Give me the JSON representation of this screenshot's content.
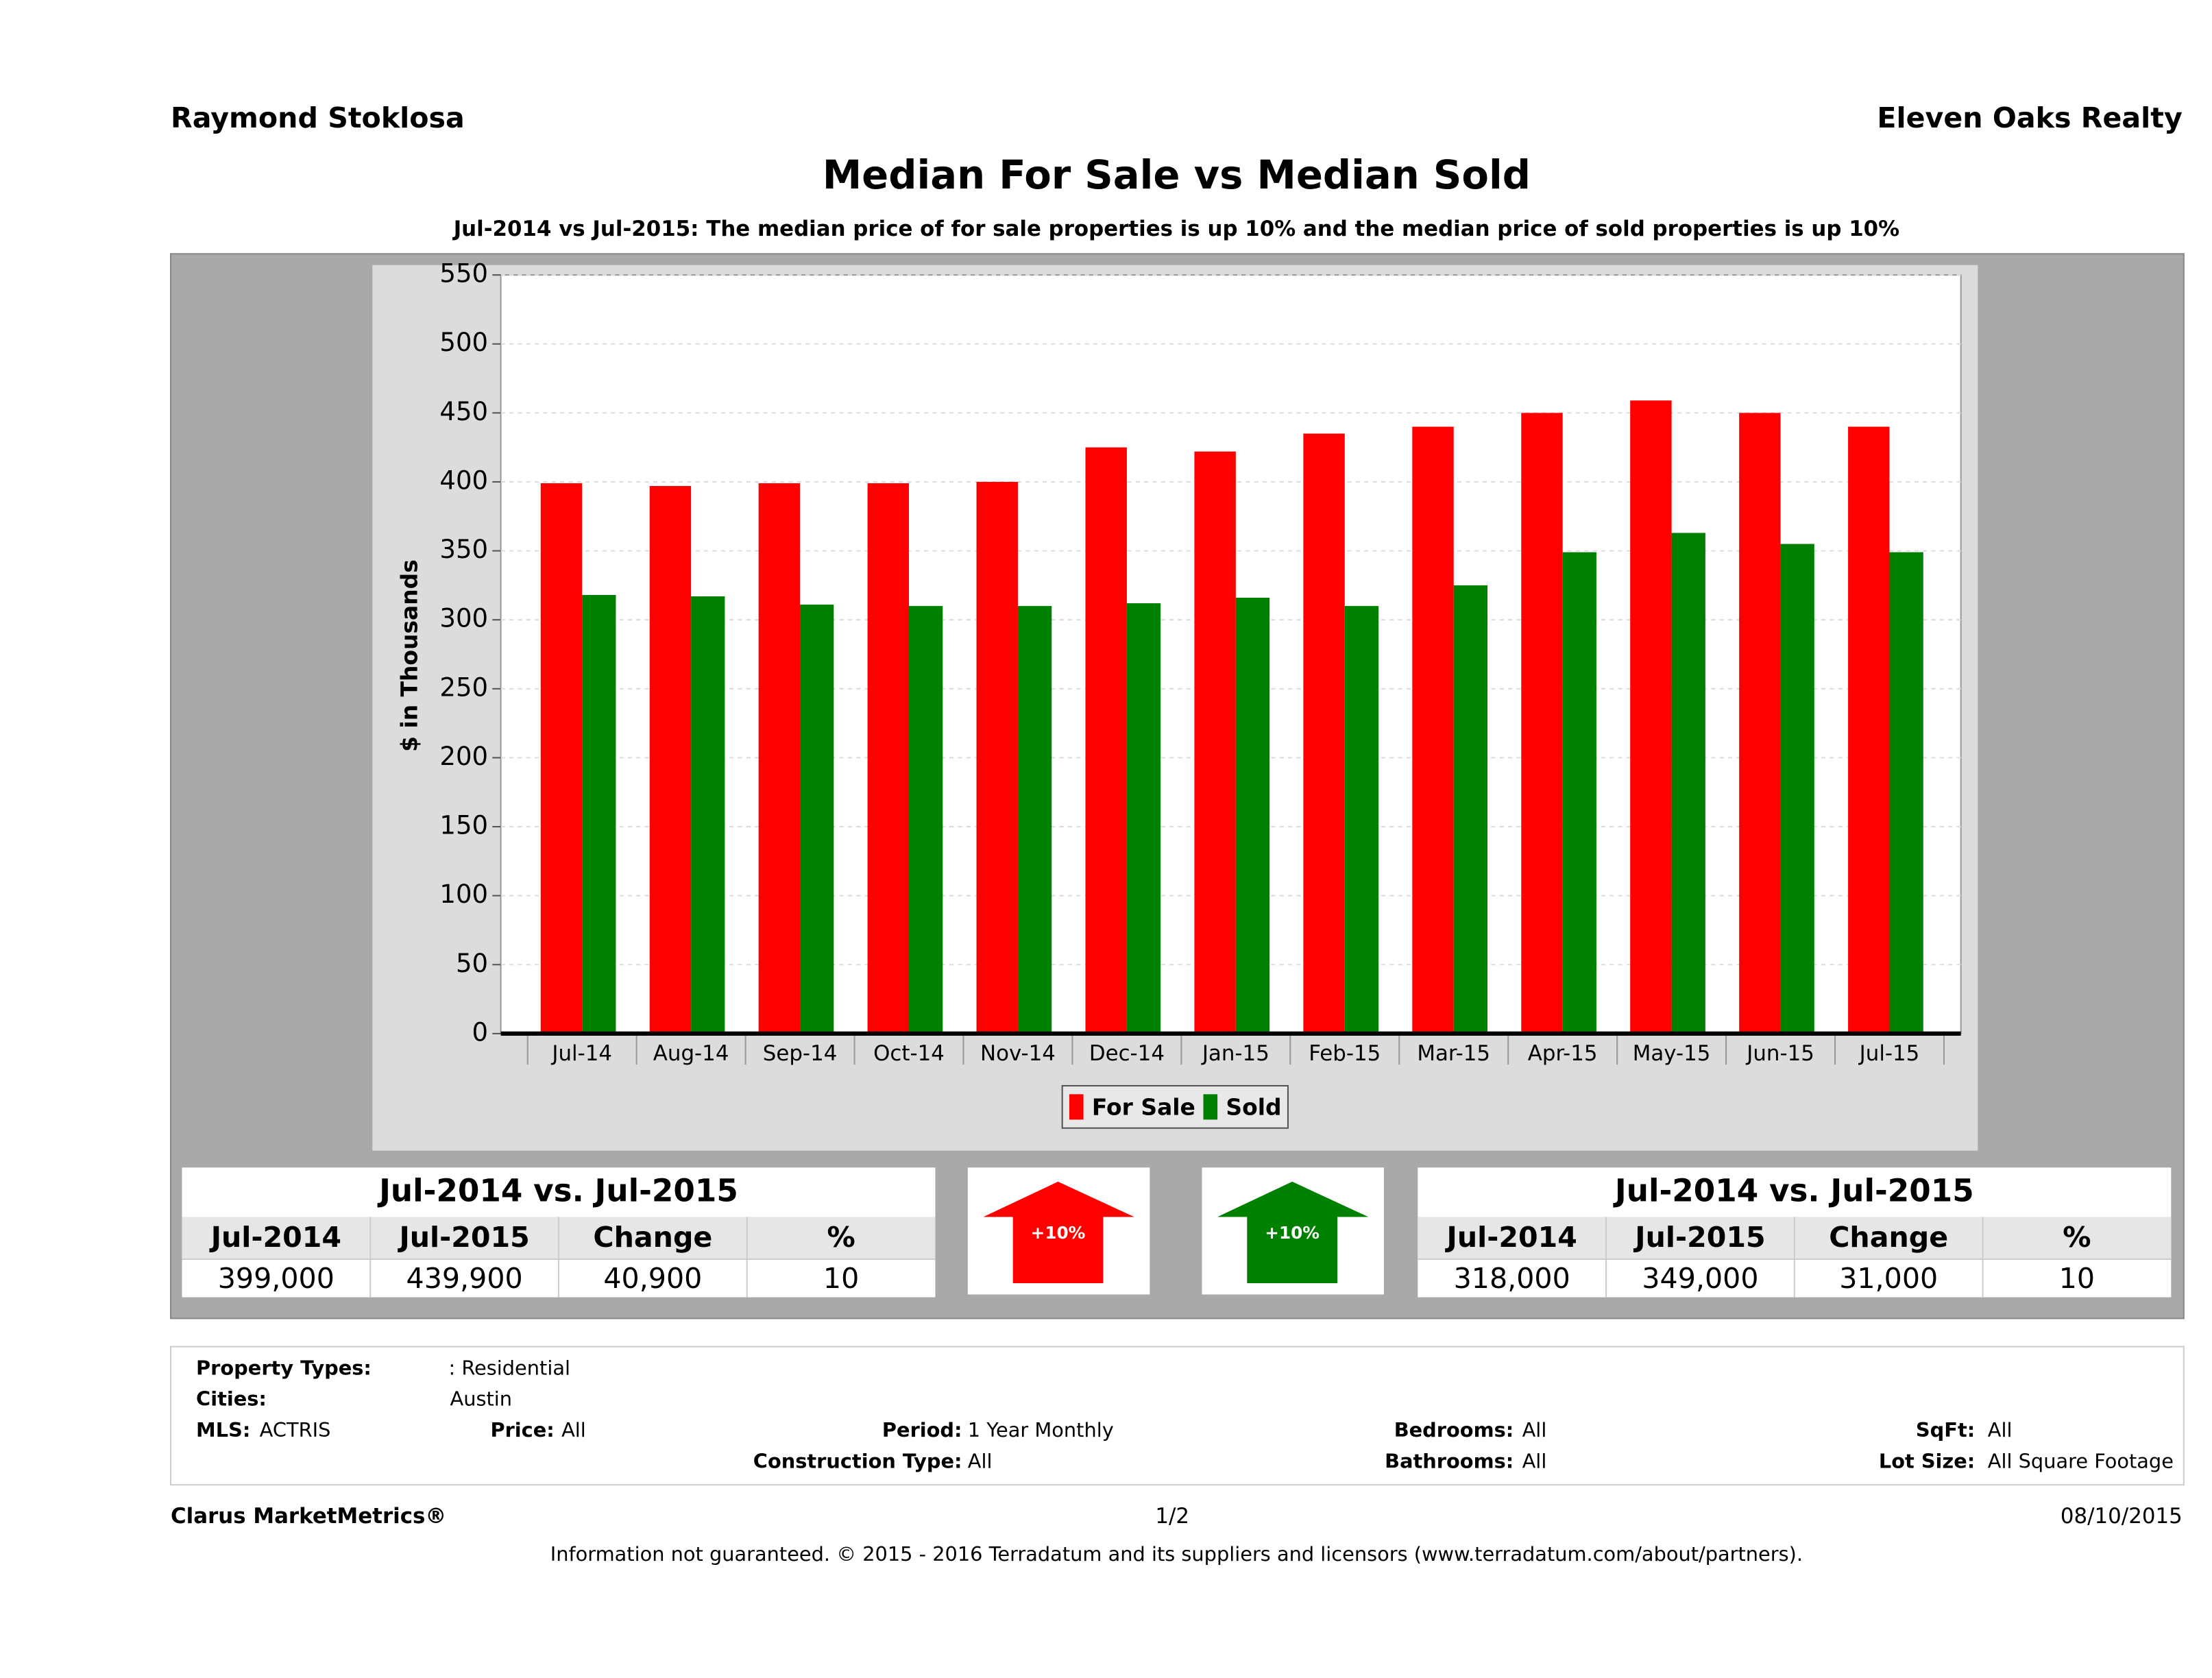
{
  "header": {
    "left": "Raymond Stoklosa",
    "right": "Eleven Oaks Realty"
  },
  "chart_data": {
    "type": "bar",
    "title": "Median For Sale vs Median Sold",
    "subtitle": "Jul-2014 vs Jul-2015: The median price of for sale properties is up 10% and the median price of sold properties is up 10%",
    "y_label": "$ in Thousands",
    "categories": [
      "Jul-14",
      "Aug-14",
      "Sep-14",
      "Oct-14",
      "Nov-14",
      "Dec-14",
      "Jan-15",
      "Feb-15",
      "Mar-15",
      "Apr-15",
      "May-15",
      "Jun-15",
      "Jul-15"
    ],
    "series": [
      {
        "name": "For Sale",
        "color": "#ff0000",
        "values": [
          399,
          397,
          399,
          399,
          400,
          425,
          422,
          435,
          440,
          450,
          459,
          450,
          440
        ]
      },
      {
        "name": "Sold",
        "color": "#008000",
        "values": [
          318,
          317,
          311,
          310,
          310,
          312,
          316,
          310,
          325,
          349,
          363,
          355,
          349
        ]
      }
    ],
    "ylim": [
      0,
      550
    ],
    "yticks": [
      0,
      50,
      100,
      150,
      200,
      250,
      300,
      350,
      400,
      450,
      500,
      550
    ],
    "grid": true,
    "legend": "bottom"
  },
  "summary": [
    {
      "title": "Jul-2014 vs. Jul-2015",
      "headers": [
        "Jul-2014",
        "Jul-2015",
        "Change",
        "%"
      ],
      "values": [
        "399,000",
        "439,900",
        "40,900",
        "10"
      ],
      "arrow": "+10%",
      "color": "#ff0000"
    },
    {
      "title": "Jul-2014 vs. Jul-2015",
      "headers": [
        "Jul-2014",
        "Jul-2015",
        "Change",
        "%"
      ],
      "values": [
        "318,000",
        "349,000",
        "31,000",
        "10"
      ],
      "arrow": "+10%",
      "color": "#008000"
    }
  ],
  "filters": [
    {
      "label": "Property Types:",
      "value": ": Residential"
    },
    {
      "label": "Cities:",
      "value": "Austin"
    },
    {
      "label": "MLS:",
      "value": "ACTRIS"
    },
    {
      "label": "Price:",
      "value": "All"
    },
    {
      "label": "Period:",
      "value": "1 Year Monthly"
    },
    {
      "label": "Bedrooms:",
      "value": "All"
    },
    {
      "label": "SqFt:",
      "value": "All"
    },
    {
      "label": "Construction Type:",
      "value": "All"
    },
    {
      "label": "Bathrooms:",
      "value": "All"
    },
    {
      "label": "Lot Size:",
      "value": "All Square Footage"
    }
  ],
  "footer": {
    "left": "Clarus MarketMetrics®",
    "center": "1/2",
    "right": "08/10/2015",
    "note": "Information not guaranteed. © 2015 - 2016 Terradatum and its suppliers and licensors (www.terradatum.com/about/partners)."
  }
}
